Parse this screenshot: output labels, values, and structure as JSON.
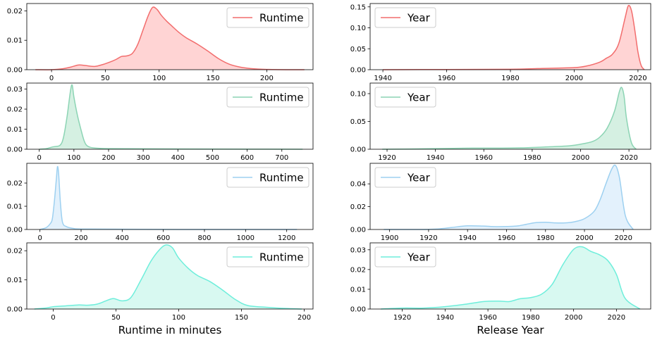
{
  "chart_data": [
    {
      "type": "area",
      "color": "#f26d6d",
      "fill": "#ffd4d4",
      "legend": "Runtime",
      "legend_position": "upper right",
      "xlim": [
        -23,
        243
      ],
      "ylim": [
        0,
        0.0225
      ],
      "xticks": [
        0,
        50,
        100,
        150,
        200
      ],
      "xtick_labels": [
        "0",
        "50",
        "100",
        "150",
        "200"
      ],
      "yticks": [
        0,
        0.01,
        0.02
      ],
      "ytick_labels": [
        "0.00",
        "0.01",
        "0.02"
      ],
      "xlabel": "",
      "x": [
        -15,
        0,
        10,
        18,
        25,
        32,
        40,
        48,
        55,
        60,
        65,
        70,
        75,
        80,
        85,
        90,
        94,
        98,
        102,
        107,
        112,
        118,
        125,
        135,
        145,
        155,
        165,
        175,
        185,
        200,
        220,
        235
      ],
      "y": [
        0.0,
        0.0,
        0.0003,
        0.0009,
        0.0016,
        0.0014,
        0.0011,
        0.0018,
        0.0027,
        0.0035,
        0.0045,
        0.0047,
        0.0055,
        0.0085,
        0.0135,
        0.0185,
        0.0212,
        0.0205,
        0.0185,
        0.0165,
        0.0148,
        0.0128,
        0.0109,
        0.0088,
        0.0064,
        0.0038,
        0.0019,
        0.0009,
        0.0004,
        0.0001,
        0.0,
        0.0
      ]
    },
    {
      "type": "area",
      "color": "#f26d6d",
      "fill": "#ffd4d4",
      "legend": "Year",
      "legend_position": "upper left",
      "xlim": [
        1936,
        2024
      ],
      "ylim": [
        0,
        0.158
      ],
      "xticks": [
        1940,
        1960,
        1980,
        2000,
        2020
      ],
      "xtick_labels": [
        "1940",
        "1960",
        "1980",
        "2000",
        "2020"
      ],
      "yticks": [
        0,
        0.05,
        0.1,
        0.15
      ],
      "ytick_labels": [
        "0.00",
        "0.05",
        "0.10",
        "0.15"
      ],
      "xlabel": "",
      "x": [
        1940,
        1960,
        1980,
        1990,
        2000,
        2004,
        2008,
        2010,
        2012,
        2014,
        2016,
        2017,
        2018,
        2019,
        2020,
        2021,
        2022
      ],
      "y": [
        0.0,
        0.0005,
        0.001,
        0.003,
        0.005,
        0.009,
        0.018,
        0.027,
        0.037,
        0.063,
        0.125,
        0.153,
        0.14,
        0.095,
        0.042,
        0.01,
        0.0
      ]
    },
    {
      "type": "area",
      "color": "#8cd4b4",
      "fill": "#d5f0e2",
      "legend": "Runtime",
      "legend_position": "upper right",
      "xlim": [
        -36,
        790
      ],
      "ylim": [
        0,
        0.033
      ],
      "xticks": [
        0,
        100,
        200,
        300,
        400,
        500,
        600,
        700
      ],
      "xtick_labels": [
        "0",
        "100",
        "200",
        "300",
        "400",
        "500",
        "600",
        "700"
      ],
      "yticks": [
        0,
        0.01,
        0.02,
        0.03
      ],
      "ytick_labels": [
        "0.00",
        "0.01",
        "0.02",
        "0.03"
      ],
      "xlabel": "",
      "x": [
        0,
        20,
        40,
        60,
        70,
        80,
        90,
        95,
        100,
        110,
        120,
        130,
        140,
        160,
        200,
        300,
        500,
        760
      ],
      "y": [
        0.0,
        0.0003,
        0.0012,
        0.002,
        0.006,
        0.016,
        0.029,
        0.032,
        0.026,
        0.017,
        0.01,
        0.004,
        0.0015,
        0.0006,
        0.0003,
        0.0002,
        0.0001,
        0.0
      ]
    },
    {
      "type": "area",
      "color": "#8cd4b4",
      "fill": "#d5f0e2",
      "legend": "Year",
      "legend_position": "upper left",
      "xlim": [
        1913,
        2029
      ],
      "ylim": [
        0,
        0.119
      ],
      "xticks": [
        1920,
        1940,
        1960,
        1980,
        2000,
        2020
      ],
      "xtick_labels": [
        "1920",
        "1940",
        "1960",
        "1980",
        "2000",
        "2020"
      ],
      "yticks": [
        0,
        0.05,
        0.1
      ],
      "ytick_labels": [
        "0.00",
        "0.05",
        "0.10"
      ],
      "xlabel": "",
      "x": [
        1918,
        1930,
        1945,
        1955,
        1965,
        1975,
        1985,
        1995,
        2000,
        2005,
        2008,
        2011,
        2014,
        2016,
        2017,
        2018,
        2019,
        2021,
        2023
      ],
      "y": [
        0.0,
        0.0005,
        0.0015,
        0.002,
        0.002,
        0.0025,
        0.004,
        0.006,
        0.009,
        0.014,
        0.022,
        0.038,
        0.068,
        0.103,
        0.111,
        0.095,
        0.055,
        0.012,
        0.0
      ]
    },
    {
      "type": "area",
      "color": "#9dd0f0",
      "fill": "#e3f1fc",
      "legend": "Runtime",
      "legend_position": "upper right",
      "xlim": [
        -64,
        1328
      ],
      "ylim": [
        0,
        0.0285
      ],
      "xticks": [
        0,
        200,
        400,
        600,
        800,
        1000,
        1200
      ],
      "xtick_labels": [
        "0",
        "200",
        "400",
        "600",
        "800",
        "1000",
        "1200"
      ],
      "yticks": [
        0,
        0.01,
        0.02
      ],
      "ytick_labels": [
        "0.00",
        "0.01",
        "0.02"
      ],
      "xlabel": "",
      "x": [
        0,
        30,
        50,
        60,
        70,
        80,
        85,
        90,
        95,
        100,
        110,
        130,
        160,
        200,
        400,
        700,
        1000,
        1250
      ],
      "y": [
        0.0,
        0.0008,
        0.0025,
        0.0045,
        0.012,
        0.022,
        0.027,
        0.025,
        0.018,
        0.011,
        0.003,
        0.0012,
        0.0005,
        0.0002,
        0.0001,
        0.0,
        0.0,
        0.0
      ]
    },
    {
      "type": "area",
      "color": "#9dd0f0",
      "fill": "#e3f1fc",
      "legend": "Year",
      "legend_position": "upper left",
      "xlim": [
        1890,
        2034
      ],
      "ylim": [
        0,
        0.058
      ],
      "xticks": [
        1900,
        1920,
        1940,
        1960,
        1980,
        2000,
        2020
      ],
      "xtick_labels": [
        "1900",
        "1920",
        "1940",
        "1960",
        "1980",
        "2000",
        "2020"
      ],
      "yticks": [
        0,
        0.02,
        0.04
      ],
      "ytick_labels": [
        "0.00",
        "0.02",
        "0.04"
      ],
      "xlabel": "",
      "x": [
        1897,
        1915,
        1925,
        1932,
        1940,
        1948,
        1955,
        1965,
        1970,
        1975,
        1980,
        1985,
        1990,
        1995,
        2000,
        2005,
        2008,
        2011,
        2014,
        2016,
        2018,
        2021,
        2025
      ],
      "y": [
        0.0,
        0.0,
        0.0005,
        0.0018,
        0.0032,
        0.003,
        0.0025,
        0.003,
        0.0045,
        0.006,
        0.0063,
        0.0058,
        0.0058,
        0.0068,
        0.0095,
        0.016,
        0.026,
        0.04,
        0.053,
        0.056,
        0.045,
        0.012,
        0.0
      ]
    },
    {
      "type": "area",
      "color": "#6eeedb",
      "fill": "#d8f9f1",
      "legend": "Runtime",
      "legend_position": "upper right",
      "xlim": [
        -21,
        207
      ],
      "ylim": [
        0,
        0.0227
      ],
      "xticks": [
        0,
        50,
        100,
        150,
        200
      ],
      "xtick_labels": [
        "0",
        "50",
        "100",
        "150",
        "200"
      ],
      "yticks": [
        0,
        0.01,
        0.02
      ],
      "ytick_labels": [
        "0.00",
        "0.01",
        "0.02"
      ],
      "xlabel": "Runtime in minutes",
      "x": [
        -15,
        -5,
        0,
        10,
        20,
        27,
        35,
        42,
        48,
        55,
        62,
        70,
        78,
        85,
        90,
        95,
        100,
        108,
        115,
        125,
        135,
        145,
        155,
        170,
        185,
        198
      ],
      "y": [
        0.0,
        0.0004,
        0.0008,
        0.0011,
        0.0014,
        0.0013,
        0.0017,
        0.0028,
        0.0036,
        0.0028,
        0.004,
        0.01,
        0.0165,
        0.0205,
        0.022,
        0.021,
        0.0175,
        0.0138,
        0.0115,
        0.0094,
        0.0065,
        0.0033,
        0.0012,
        0.0006,
        0.0002,
        0.0
      ]
    },
    {
      "type": "area",
      "color": "#6eeedb",
      "fill": "#d8f9f1",
      "legend": "Year",
      "legend_position": "upper left",
      "xlim": [
        1905,
        2036
      ],
      "ylim": [
        0,
        0.0335
      ],
      "xticks": [
        1920,
        1940,
        1960,
        1980,
        2000,
        2020
      ],
      "xtick_labels": [
        "1920",
        "1940",
        "1960",
        "1980",
        "2000",
        "2020"
      ],
      "yticks": [
        0,
        0.01,
        0.02,
        0.03
      ],
      "ytick_labels": [
        "0.00",
        "0.01",
        "0.02",
        "0.03"
      ],
      "xlabel": "Release Year",
      "x": [
        1910,
        1920,
        1930,
        1940,
        1950,
        1958,
        1965,
        1970,
        1975,
        1980,
        1985,
        1990,
        1995,
        2000,
        2004,
        2008,
        2012,
        2016,
        2020,
        2024,
        2031
      ],
      "y": [
        0.0,
        0.0005,
        0.0005,
        0.0012,
        0.0025,
        0.0038,
        0.004,
        0.0038,
        0.0052,
        0.0058,
        0.0075,
        0.0125,
        0.0225,
        0.0302,
        0.0315,
        0.0292,
        0.0275,
        0.0245,
        0.0175,
        0.0055,
        0.0
      ]
    }
  ]
}
